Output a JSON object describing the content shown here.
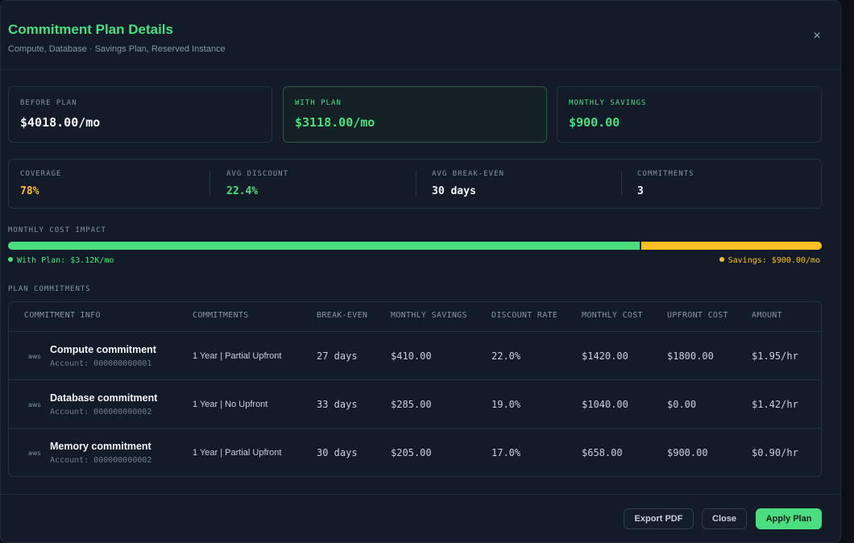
{
  "header": {
    "title": "Commitment Plan Details",
    "subtitle": "Compute, Database · Savings Plan, Reserved Instance",
    "close_glyph": "×"
  },
  "summary": [
    {
      "label": "BEFORE PLAN",
      "value": "$4018.00/mo"
    },
    {
      "label": "WITH PLAN",
      "value": "$3118.00/mo"
    },
    {
      "label": "MONTHLY SAVINGS",
      "value": "$900.00"
    }
  ],
  "stats": [
    {
      "label": "COVERAGE",
      "value": "78%"
    },
    {
      "label": "AVG DISCOUNT",
      "value": "22.4%"
    },
    {
      "label": "AVG BREAK-EVEN",
      "value": "30 days"
    },
    {
      "label": "COMMITMENTS",
      "value": "3"
    }
  ],
  "cost_impact": {
    "label": "MONTHLY COST IMPACT",
    "with_plan_fraction": 0.776,
    "with_plan_label": "With Plan: $3.12K/mo",
    "savings_label": "Savings: $900.00/mo"
  },
  "table": {
    "section_label": "PLAN COMMITMENTS",
    "columns": [
      "COMMITMENT INFO",
      "COMMITMENTS",
      "BREAK-EVEN",
      "MONTHLY SAVINGS",
      "DISCOUNT RATE",
      "MONTHLY COST",
      "UPFRONT COST",
      "AMOUNT"
    ],
    "rows": [
      {
        "provider": "aws",
        "name": "Compute commitment",
        "account": "Account: 000000000001",
        "term": "1 Year | Partial Upfront",
        "break_even": "27 days",
        "savings": "$410.00",
        "discount": "22.0%",
        "monthly_cost": "$1420.00",
        "upfront": "$1800.00",
        "amount": "$1.95/hr"
      },
      {
        "provider": "aws",
        "name": "Database commitment",
        "account": "Account: 000000000002",
        "term": "1 Year | No Upfront",
        "break_even": "33 days",
        "savings": "$285.00",
        "discount": "19.0%",
        "monthly_cost": "$1040.00",
        "upfront": "$0.00",
        "amount": "$1.42/hr"
      },
      {
        "provider": "aws",
        "name": "Memory commitment",
        "account": "Account: 000000000002",
        "term": "1 Year | Partial Upfront",
        "break_even": "30 days",
        "savings": "$205.00",
        "discount": "17.0%",
        "monthly_cost": "$658.00",
        "upfront": "$900.00",
        "amount": "$0.90/hr"
      }
    ]
  },
  "footer": {
    "export_label": "Export PDF",
    "close_label": "Close",
    "apply_label": "Apply Plan"
  },
  "colors": {
    "accent_green": "#4ade80",
    "accent_amber": "#fbbf24"
  }
}
